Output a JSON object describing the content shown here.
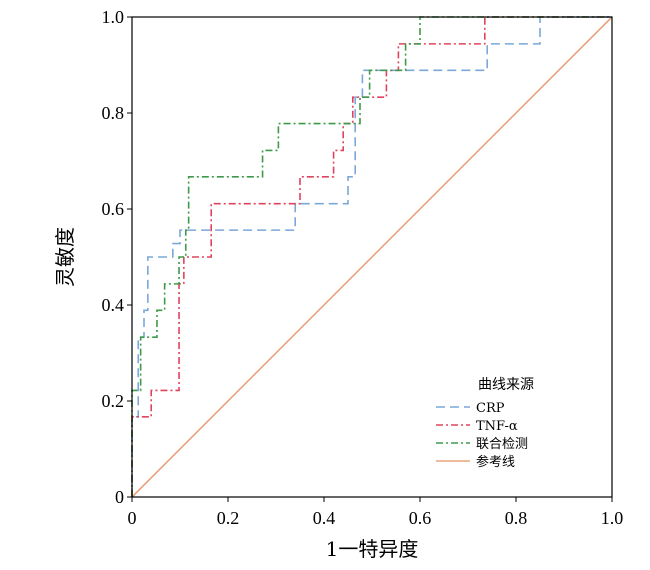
{
  "chart_data": {
    "type": "line",
    "title": "",
    "xlabel": "1一特异度",
    "ylabel": "灵敏度",
    "xlim": [
      0,
      1
    ],
    "ylim": [
      0,
      1
    ],
    "x_ticks": [
      "0",
      "0.2",
      "0.4",
      "0.6",
      "0.8",
      "1.0"
    ],
    "y_ticks": [
      "0",
      "0.2",
      "0.4",
      "0.6",
      "0.8",
      "1.0"
    ],
    "legend_title": "曲线来源",
    "legend_position": "bottom-right",
    "series": [
      {
        "name": "CRP",
        "color": "#7BA7D9",
        "dash": "dashed",
        "points": [
          [
            0,
            0
          ],
          [
            0,
            0.167
          ],
          [
            0.013,
            0.167
          ],
          [
            0.013,
            0.333
          ],
          [
            0.025,
            0.333
          ],
          [
            0.025,
            0.389
          ],
          [
            0.033,
            0.389
          ],
          [
            0.033,
            0.5
          ],
          [
            0.085,
            0.5
          ],
          [
            0.085,
            0.528
          ],
          [
            0.1,
            0.528
          ],
          [
            0.1,
            0.556
          ],
          [
            0.34,
            0.556
          ],
          [
            0.34,
            0.611
          ],
          [
            0.45,
            0.611
          ],
          [
            0.45,
            0.667
          ],
          [
            0.465,
            0.667
          ],
          [
            0.465,
            0.833
          ],
          [
            0.48,
            0.833
          ],
          [
            0.48,
            0.889
          ],
          [
            0.74,
            0.889
          ],
          [
            0.74,
            0.944
          ],
          [
            0.85,
            0.944
          ],
          [
            0.85,
            1.0
          ],
          [
            1.0,
            1.0
          ]
        ]
      },
      {
        "name": "TNF-α",
        "color": "#E0435E",
        "dash": "dashdot",
        "points": [
          [
            0,
            0
          ],
          [
            0,
            0.167
          ],
          [
            0.04,
            0.167
          ],
          [
            0.04,
            0.222
          ],
          [
            0.098,
            0.222
          ],
          [
            0.098,
            0.444
          ],
          [
            0.108,
            0.444
          ],
          [
            0.108,
            0.5
          ],
          [
            0.165,
            0.5
          ],
          [
            0.165,
            0.611
          ],
          [
            0.35,
            0.611
          ],
          [
            0.35,
            0.667
          ],
          [
            0.42,
            0.667
          ],
          [
            0.42,
            0.722
          ],
          [
            0.44,
            0.722
          ],
          [
            0.44,
            0.778
          ],
          [
            0.46,
            0.778
          ],
          [
            0.46,
            0.833
          ],
          [
            0.53,
            0.833
          ],
          [
            0.53,
            0.889
          ],
          [
            0.555,
            0.889
          ],
          [
            0.555,
            0.944
          ],
          [
            0.735,
            0.944
          ],
          [
            0.735,
            1.0
          ],
          [
            1.0,
            1.0
          ]
        ]
      },
      {
        "name": "联合检测",
        "color": "#3E9A4A",
        "dash": "dashdot",
        "points": [
          [
            0,
            0
          ],
          [
            0,
            0.222
          ],
          [
            0.018,
            0.222
          ],
          [
            0.018,
            0.333
          ],
          [
            0.052,
            0.333
          ],
          [
            0.052,
            0.389
          ],
          [
            0.068,
            0.389
          ],
          [
            0.068,
            0.444
          ],
          [
            0.098,
            0.444
          ],
          [
            0.098,
            0.5
          ],
          [
            0.112,
            0.5
          ],
          [
            0.112,
            0.556
          ],
          [
            0.118,
            0.556
          ],
          [
            0.118,
            0.667
          ],
          [
            0.272,
            0.667
          ],
          [
            0.272,
            0.722
          ],
          [
            0.305,
            0.722
          ],
          [
            0.305,
            0.778
          ],
          [
            0.475,
            0.778
          ],
          [
            0.475,
            0.833
          ],
          [
            0.495,
            0.833
          ],
          [
            0.495,
            0.889
          ],
          [
            0.57,
            0.889
          ],
          [
            0.57,
            0.944
          ],
          [
            0.6,
            0.944
          ],
          [
            0.6,
            1.0
          ],
          [
            1.0,
            1.0
          ]
        ]
      },
      {
        "name": "参考线",
        "color": "#E8A57D",
        "dash": "solid",
        "points": [
          [
            0,
            0
          ],
          [
            1,
            1
          ]
        ]
      }
    ]
  }
}
